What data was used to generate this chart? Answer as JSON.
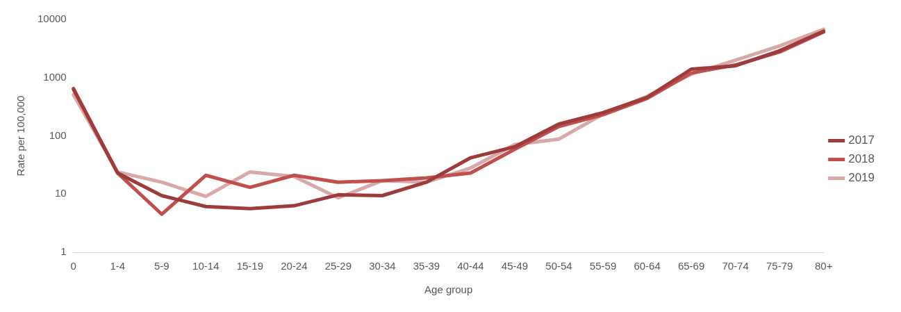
{
  "chart_data": {
    "type": "line",
    "xlabel": "Age group",
    "ylabel": "Rate per 100,000",
    "log": true,
    "ylim": [
      1,
      10000
    ],
    "yticks": [
      1,
      10,
      100,
      1000,
      10000
    ],
    "grid": false,
    "legend": "right",
    "marker": "none",
    "line_style": "solid",
    "categories": [
      "0",
      "1-4",
      "5-9",
      "10-14",
      "15-19",
      "20-24",
      "25-29",
      "30-34",
      "35-39",
      "40-44",
      "45-49",
      "50-54",
      "55-59",
      "60-64",
      "65-69",
      "70-74",
      "75-79",
      "80+"
    ],
    "series": [
      {
        "name": "2017",
        "color": "#9e3b3b",
        "values": [
          630,
          23,
          9.4,
          6.1,
          5.6,
          6.3,
          9.7,
          9.4,
          16,
          42,
          65,
          160,
          250,
          460,
          1400,
          1600,
          2900,
          6300
        ]
      },
      {
        "name": "2018",
        "color": "#c0504d",
        "values": [
          650,
          23,
          4.5,
          21,
          13,
          21,
          16,
          17,
          19,
          23,
          59,
          145,
          230,
          440,
          1200,
          1650,
          2750,
          6100
        ]
      },
      {
        "name": "2019",
        "color": "#d9a9a9",
        "values": [
          510,
          24,
          16,
          9.1,
          24,
          20,
          8.6,
          17,
          16,
          28,
          71,
          88,
          236,
          480,
          1150,
          2000,
          3500,
          6800
        ]
      }
    ]
  }
}
